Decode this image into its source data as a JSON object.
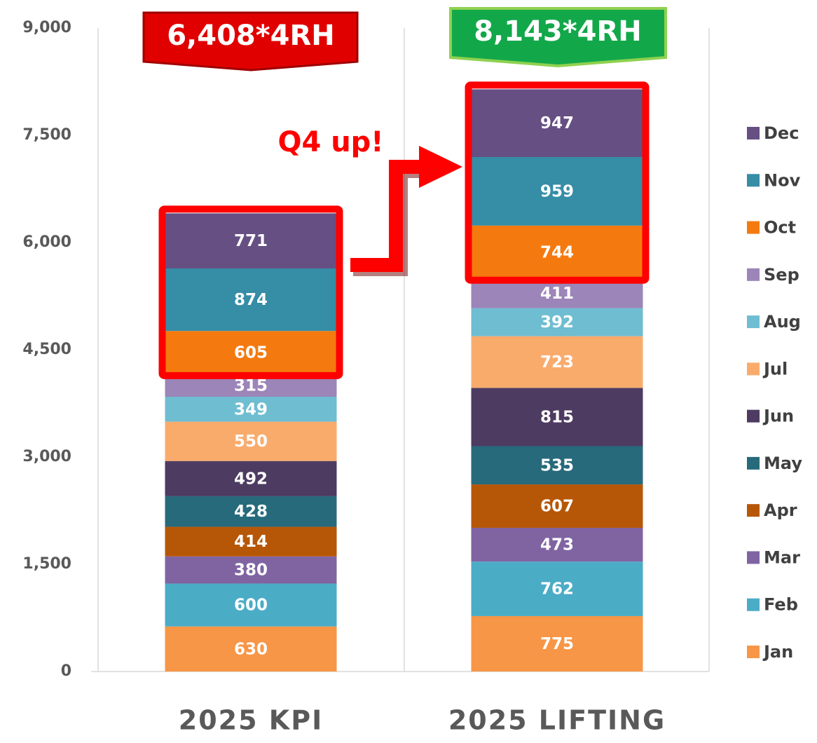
{
  "chart_data": {
    "type": "stacked_bar",
    "categories": [
      "2025 KPI",
      "2025 LIFTING"
    ],
    "series": [
      {
        "name": "Jan",
        "color": "#f79646",
        "values": [
          630,
          775
        ]
      },
      {
        "name": "Feb",
        "color": "#4bacc6",
        "values": [
          600,
          762
        ]
      },
      {
        "name": "Mar",
        "color": "#8064a2",
        "values": [
          380,
          473
        ]
      },
      {
        "name": "Apr",
        "color": "#b65708",
        "values": [
          414,
          607
        ]
      },
      {
        "name": "May",
        "color": "#276a7c",
        "values": [
          428,
          535
        ]
      },
      {
        "name": "Jun",
        "color": "#4d3b62",
        "values": [
          492,
          815
        ]
      },
      {
        "name": "Jul",
        "color": "#f9ab6c",
        "values": [
          550,
          723
        ]
      },
      {
        "name": "Aug",
        "color": "#6fbdd1",
        "values": [
          349,
          392
        ]
      },
      {
        "name": "Sep",
        "color": "#9c85b8",
        "values": [
          315,
          411
        ]
      },
      {
        "name": "Oct",
        "color": "#f47a10",
        "values": [
          605,
          744
        ]
      },
      {
        "name": "Nov",
        "color": "#358da6",
        "values": [
          874,
          959
        ]
      },
      {
        "name": "Dec",
        "color": "#664f83",
        "values": [
          771,
          947
        ]
      }
    ],
    "ylim": [
      0,
      9000
    ],
    "yticks": [
      0,
      {
        "value": 1500,
        "label": "1,500"
      },
      {
        "value": 3000,
        "label": "3,000"
      },
      {
        "value": 4500,
        "label": "4,500"
      },
      {
        "value": 6000,
        "label": "6,000"
      },
      {
        "value": 7500,
        "label": "7,500"
      },
      {
        "value": 9000,
        "label": "9,000"
      }
    ],
    "grid": false,
    "legend": "right",
    "annotations": [
      "6,408*4RH",
      "8,143*4RH",
      "Q4 up!"
    ]
  }
}
